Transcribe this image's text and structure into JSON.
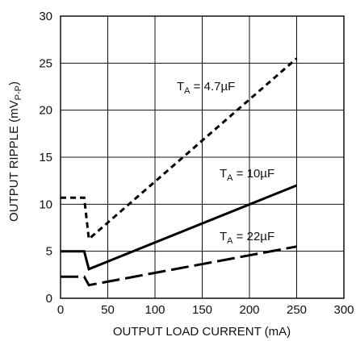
{
  "chart_data": {
    "type": "line",
    "xlabel": "OUTPUT LOAD CURRENT (mA)",
    "ylabel": {
      "main": "OUTPUT RIPPLE (mV",
      "sub": "P-P",
      "close": ")"
    },
    "xlim": [
      0,
      300
    ],
    "ylim": [
      0,
      30
    ],
    "xticks": [
      0,
      50,
      100,
      150,
      200,
      250,
      300
    ],
    "yticks": [
      0,
      5,
      10,
      15,
      20,
      25,
      30
    ],
    "grid": true,
    "series": [
      {
        "label": {
          "prefix": "T",
          "sub": "A",
          "value": " = 4.7µF"
        },
        "style": "short-dash",
        "x": [
          0,
          25,
          30,
          250
        ],
        "y": [
          10.7,
          10.7,
          6.3,
          25.5
        ]
      },
      {
        "label": {
          "prefix": "T",
          "sub": "A",
          "value": " = 10µF"
        },
        "style": "solid",
        "x": [
          0,
          25,
          30,
          250
        ],
        "y": [
          5.0,
          5.0,
          3.1,
          12.0
        ]
      },
      {
        "label": {
          "prefix": "T",
          "sub": "A",
          "value": " = 22µF"
        },
        "style": "long-dash",
        "x": [
          0,
          25,
          30,
          250
        ],
        "y": [
          2.3,
          2.3,
          1.4,
          5.5
        ]
      }
    ]
  }
}
